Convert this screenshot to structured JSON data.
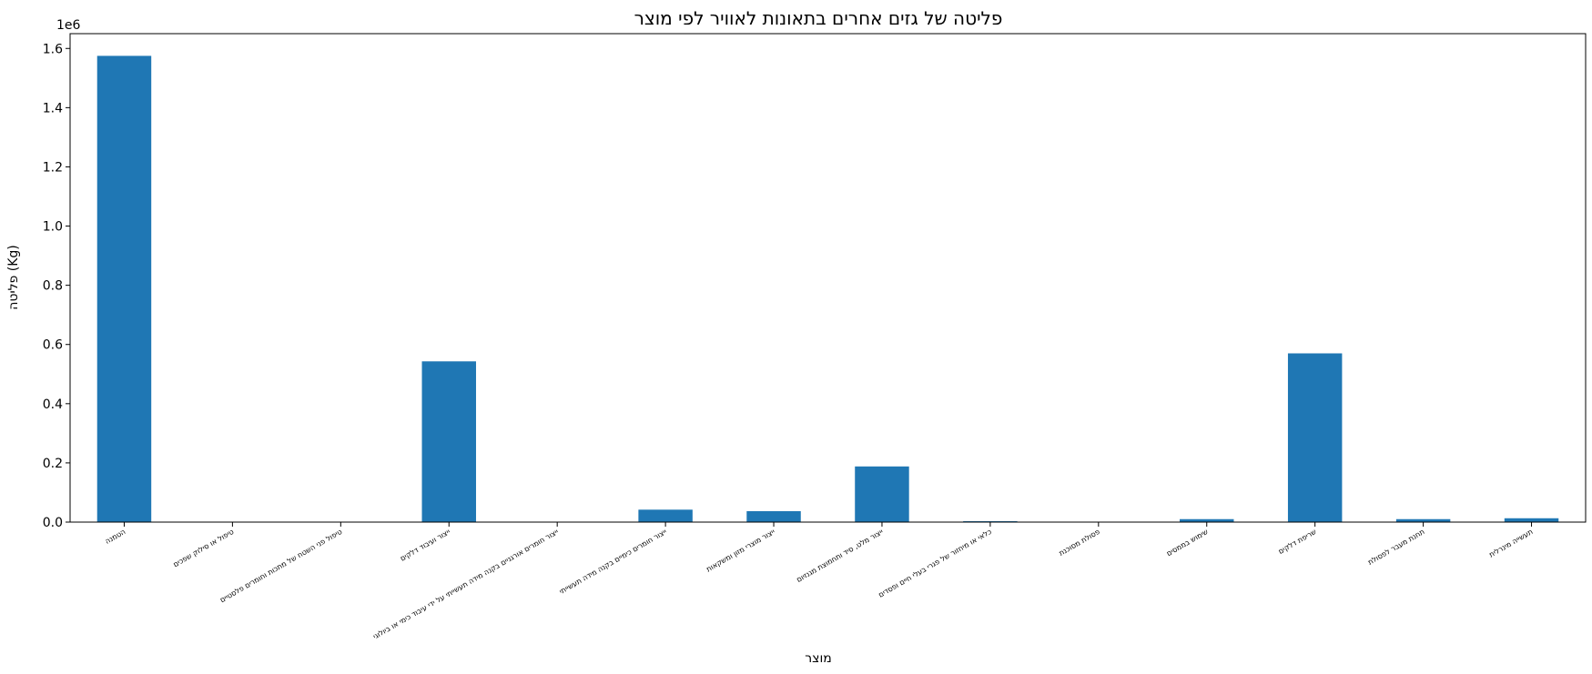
{
  "chart_data": {
    "type": "bar",
    "title": "פליטה של גזים אחרים בתאונות לאוויר לפי מוצר",
    "xlabel": "מוצר",
    "ylabel": "פליטה (Kg)",
    "y_offset_label": "1e6",
    "ylim": [
      0,
      1650000
    ],
    "yticks": [
      0,
      200000,
      400000,
      600000,
      800000,
      1000000,
      1200000,
      1400000,
      1600000
    ],
    "ytick_labels": [
      "0.0",
      "0.2",
      "0.4",
      "0.6",
      "0.8",
      "1.0",
      "1.2",
      "1.4",
      "1.6"
    ],
    "grid": false,
    "legend": "none",
    "bar_color": "#1f77b4",
    "categories": [
      "הטמנה",
      "טיפול או סילוק שפכים",
      "טיפול פני השטח של מתכות וחומרים פלסטיים",
      "ייצור ועיבוד דלקים",
      "ייצור חומרים אורגניים בקנה מידה תעשייתי על ידי עיבוד כימי או ביולוגי",
      "ייצור חומרים כימיים בקנה מידה תעשייתי",
      "ייצור מוצרי מזון ומשקאות",
      "ייצור מלט, סיד ותחמוצת מגנזיום",
      "כלאי או מיחזור של פגרי בעלי חיים ופסדים",
      "פסולת מסוכנת",
      "שימוש בממסים",
      "שריפת דלקים",
      "תחנת מעבר לפסולת",
      "תעשייה מינרלית"
    ],
    "values": [
      1575000,
      0,
      0,
      543000,
      0,
      42000,
      37000,
      188000,
      3000,
      0,
      10000,
      570000,
      10000,
      13000
    ]
  }
}
